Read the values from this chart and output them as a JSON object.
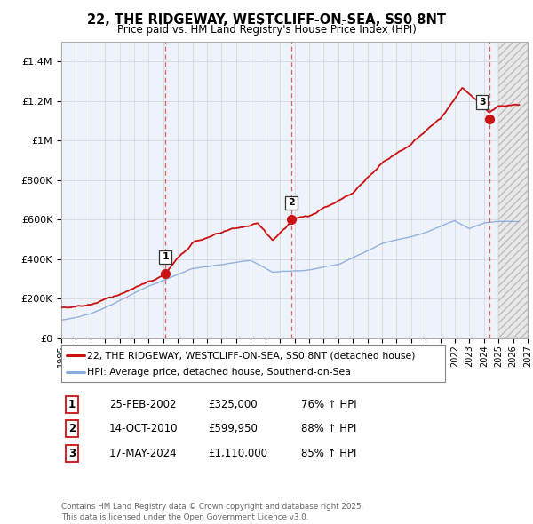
{
  "title": "22, THE RIDGEWAY, WESTCLIFF-ON-SEA, SS0 8NT",
  "subtitle": "Price paid vs. HM Land Registry's House Price Index (HPI)",
  "sale_dates": [
    2002.14,
    2010.79,
    2024.38
  ],
  "sale_prices": [
    325000,
    599950,
    1110000
  ],
  "vline_color": "#dd4444",
  "hpi_line_color": "#88aadd",
  "price_line_color": "#cc1111",
  "legend_entries": [
    "22, THE RIDGEWAY, WESTCLIFF-ON-SEA, SS0 8NT (detached house)",
    "HPI: Average price, detached house, Southend-on-Sea"
  ],
  "table_rows": [
    {
      "num": 1,
      "date": "25-FEB-2002",
      "price": "£325,000",
      "hpi": "76% ↑ HPI"
    },
    {
      "num": 2,
      "date": "14-OCT-2010",
      "price": "£599,950",
      "hpi": "88% ↑ HPI"
    },
    {
      "num": 3,
      "date": "17-MAY-2024",
      "price": "£1,110,000",
      "hpi": "85% ↑ HPI"
    }
  ],
  "footnote": "Contains HM Land Registry data © Crown copyright and database right 2025.\nThis data is licensed under the Open Government Licence v3.0.",
  "hatch_start": 2025.0,
  "xlim_start": 1995.0,
  "xlim_end": 2027.0,
  "ylim": [
    0,
    1500000
  ],
  "yticks": [
    0,
    200000,
    400000,
    600000,
    800000,
    1000000,
    1200000,
    1400000
  ],
  "ytick_labels": [
    "£0",
    "£200K",
    "£400K",
    "£600K",
    "£800K",
    "£1M",
    "£1.2M",
    "£1.4M"
  ],
  "grid_color": "#cccccc",
  "background_color": "#ffffff"
}
